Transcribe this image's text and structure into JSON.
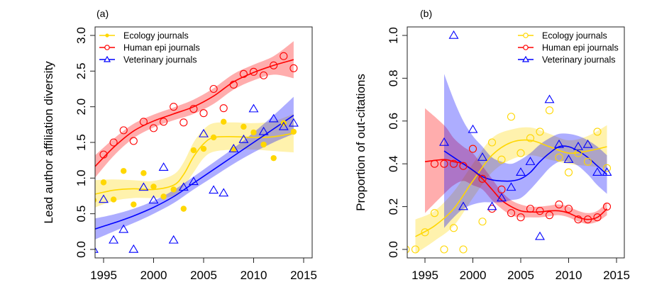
{
  "chart_data": [
    {
      "panel_label": "(a)",
      "type": "scatter",
      "title": "",
      "xlabel": "",
      "ylabel": "Lead author affiliation diversity",
      "xlim": [
        1994,
        2016
      ],
      "ylim": [
        -0.05,
        3.1
      ],
      "xticks": [
        1995,
        2000,
        2005,
        2010,
        2015
      ],
      "xtick_labels": [
        "1995",
        "2000",
        "2005",
        "2010",
        "2015"
      ],
      "yticks": [
        0.0,
        0.5,
        1.0,
        1.5,
        2.0,
        2.5,
        3.0
      ],
      "ytick_labels": [
        "0.0",
        "0.5",
        "1.0",
        "1.5",
        "2.0",
        "2.5",
        "3.0"
      ],
      "grid": false,
      "legend_position": "top-left",
      "series": [
        {
          "name": "Ecology journals",
          "color": "#FFD700",
          "band_color": "#FFF0A0",
          "marker": "filled-circle",
          "x": [
            1994,
            1995,
            1996,
            1997,
            1998,
            1999,
            2000,
            2001,
            2002,
            2003,
            2004,
            2005,
            2006,
            2007,
            2008,
            2009,
            2010,
            2011,
            2012,
            2013,
            2014
          ],
          "y": [
            0.69,
            0.94,
            0.7,
            1.1,
            0.63,
            1.07,
            0.88,
            0.74,
            0.84,
            0.57,
            1.39,
            1.41,
            1.57,
            1.79,
            1.4,
            1.72,
            1.64,
            1.47,
            1.28,
            1.77,
            1.65
          ],
          "fit_x": [
            1994,
            1996,
            1998,
            2000,
            2002,
            2003,
            2004,
            2005,
            2006,
            2008,
            2010,
            2012,
            2014
          ],
          "fit_y": [
            0.77,
            0.83,
            0.85,
            0.84,
            0.9,
            1.05,
            1.3,
            1.48,
            1.57,
            1.58,
            1.57,
            1.58,
            1.63
          ],
          "band_lo": [
            0.58,
            0.68,
            0.72,
            0.72,
            0.75,
            0.88,
            1.08,
            1.28,
            1.37,
            1.4,
            1.4,
            1.38,
            1.36
          ],
          "band_hi": [
            0.97,
            0.98,
            0.97,
            0.96,
            1.05,
            1.22,
            1.5,
            1.68,
            1.77,
            1.78,
            1.77,
            1.8,
            1.9
          ]
        },
        {
          "name": "Human epi journals",
          "color": "#FF0000",
          "band_color": "#F8A8A8",
          "marker": "open-circle",
          "x": [
            1995,
            1996,
            1997,
            1998,
            1999,
            2000,
            2001,
            2002,
            2003,
            2004,
            2005,
            2006,
            2007,
            2008,
            2009,
            2010,
            2011,
            2012,
            2013,
            2014
          ],
          "y": [
            1.33,
            1.5,
            1.67,
            1.52,
            1.79,
            1.7,
            1.79,
            2.0,
            1.78,
            1.97,
            1.91,
            2.25,
            1.98,
            2.31,
            2.46,
            2.49,
            2.44,
            2.58,
            2.71,
            2.54
          ],
          "fit_x": [
            1994,
            1996,
            1998,
            2000,
            2002,
            2004,
            2006,
            2008,
            2010,
            2012,
            2014
          ],
          "fit_y": [
            1.14,
            1.43,
            1.66,
            1.8,
            1.9,
            2.0,
            2.15,
            2.35,
            2.48,
            2.58,
            2.66
          ],
          "band_lo": [
            0.98,
            1.31,
            1.56,
            1.71,
            1.81,
            1.9,
            2.04,
            2.24,
            2.37,
            2.45,
            2.4
          ],
          "band_hi": [
            1.3,
            1.55,
            1.76,
            1.89,
            1.99,
            2.1,
            2.26,
            2.46,
            2.59,
            2.71,
            2.92
          ]
        },
        {
          "name": "Veterinary journals",
          "color": "#0000FF",
          "band_color": "#A8A8F8",
          "marker": "open-triangle",
          "x": [
            1994,
            1995,
            1996,
            1997,
            1998,
            1999,
            2000,
            2001,
            2002,
            2003,
            2004,
            2005,
            2006,
            2007,
            2008,
            2009,
            2010,
            2011,
            2012,
            2013,
            2014
          ],
          "y": [
            0.0,
            0.7,
            0.13,
            0.28,
            0.0,
            0.87,
            0.69,
            1.15,
            0.13,
            0.87,
            0.95,
            1.62,
            0.83,
            0.79,
            1.41,
            1.54,
            1.97,
            1.65,
            1.83,
            1.72,
            1.77
          ],
          "fit_x": [
            1994,
            1996,
            1998,
            2000,
            2002,
            2004,
            2006,
            2008,
            2010,
            2012,
            2014
          ],
          "fit_y": [
            0.28,
            0.37,
            0.47,
            0.59,
            0.74,
            0.93,
            1.12,
            1.31,
            1.5,
            1.69,
            1.88
          ],
          "band_lo": [
            0.13,
            0.25,
            0.37,
            0.5,
            0.65,
            0.84,
            1.02,
            1.2,
            1.36,
            1.5,
            1.62
          ],
          "band_hi": [
            0.43,
            0.49,
            0.57,
            0.68,
            0.83,
            1.02,
            1.22,
            1.42,
            1.64,
            1.88,
            2.14
          ]
        }
      ]
    },
    {
      "panel_label": "(b)",
      "type": "scatter",
      "title": "",
      "xlabel": "",
      "ylabel": "Proportion of out-citations",
      "xlim": [
        1993,
        2016
      ],
      "ylim": [
        -0.04,
        1.04
      ],
      "xticks": [
        1995,
        2000,
        2005,
        2010,
        2015
      ],
      "xtick_labels": [
        "1995",
        "2000",
        "2005",
        "2010",
        "2015"
      ],
      "yticks": [
        0.0,
        0.2,
        0.4,
        0.6,
        0.8,
        1.0
      ],
      "ytick_labels": [
        "0.0",
        "0.2",
        "0.4",
        "0.6",
        "0.8",
        "1.0"
      ],
      "grid": false,
      "legend_position": "top-right",
      "series": [
        {
          "name": "Ecology journals",
          "color": "#FFD700",
          "band_color": "#FFF0A0",
          "marker": "open-circle",
          "x": [
            1993,
            1994,
            1995,
            1996,
            1997,
            1998,
            1999,
            2000,
            2001,
            2002,
            2003,
            2004,
            2005,
            2006,
            2007,
            2008,
            2009,
            2010,
            2011,
            2012,
            2013,
            2014
          ],
          "y": [
            0.0,
            0.0,
            0.08,
            0.17,
            0.0,
            0.1,
            0.0,
            0.47,
            0.13,
            0.5,
            0.42,
            0.62,
            0.45,
            0.52,
            0.55,
            0.65,
            0.43,
            0.36,
            0.45,
            0.41,
            0.55,
            0.38
          ],
          "fit_x": [
            1994,
            1996,
            1998,
            2000,
            2002,
            2004,
            2006,
            2008,
            2010,
            2012,
            2014
          ],
          "fit_y": [
            0.06,
            0.11,
            0.19,
            0.32,
            0.44,
            0.5,
            0.51,
            0.48,
            0.45,
            0.46,
            0.48
          ],
          "band_lo": [
            -0.02,
            0.04,
            0.11,
            0.24,
            0.36,
            0.42,
            0.44,
            0.42,
            0.4,
            0.39,
            0.38
          ],
          "band_hi": [
            0.14,
            0.18,
            0.27,
            0.4,
            0.52,
            0.56,
            0.57,
            0.54,
            0.51,
            0.53,
            0.58
          ]
        },
        {
          "name": "Human epi journals",
          "color": "#FF0000",
          "band_color": "#F8A8A8",
          "marker": "open-circle",
          "x": [
            1996,
            1997,
            1998,
            1999,
            2000,
            2001,
            2002,
            2003,
            2004,
            2005,
            2006,
            2007,
            2008,
            2009,
            2010,
            2011,
            2012,
            2013,
            2014
          ],
          "y": [
            0.4,
            0.4,
            0.4,
            0.39,
            0.47,
            0.33,
            0.19,
            0.28,
            0.17,
            0.15,
            0.19,
            0.18,
            0.16,
            0.21,
            0.19,
            0.14,
            0.14,
            0.15,
            0.2
          ],
          "fit_x": [
            1995,
            1997,
            1998,
            1999,
            2000,
            2001,
            2002,
            2003,
            2004,
            2005,
            2006,
            2007,
            2008,
            2009,
            2010,
            2011,
            2012,
            2013,
            2014
          ],
          "fit_y": [
            0.41,
            0.42,
            0.41,
            0.4,
            0.37,
            0.33,
            0.28,
            0.23,
            0.2,
            0.18,
            0.175,
            0.175,
            0.18,
            0.18,
            0.17,
            0.15,
            0.14,
            0.15,
            0.19
          ],
          "band_lo": [
            0.17,
            0.26,
            0.3,
            0.32,
            0.3,
            0.28,
            0.23,
            0.19,
            0.16,
            0.15,
            0.15,
            0.15,
            0.155,
            0.16,
            0.15,
            0.13,
            0.12,
            0.13,
            0.16
          ],
          "band_hi": [
            0.66,
            0.58,
            0.52,
            0.48,
            0.45,
            0.39,
            0.33,
            0.27,
            0.23,
            0.21,
            0.2,
            0.2,
            0.205,
            0.21,
            0.2,
            0.18,
            0.17,
            0.18,
            0.22
          ]
        },
        {
          "name": "Veterinary journals",
          "color": "#0000FF",
          "band_color": "#A8A8F8",
          "marker": "open-triangle",
          "x": [
            1997,
            1998,
            1999,
            2000,
            2001,
            2002,
            2003,
            2004,
            2005,
            2006,
            2007,
            2008,
            2009,
            2010,
            2011,
            2012,
            2013,
            2014
          ],
          "y": [
            0.5,
            1.0,
            0.2,
            0.56,
            0.43,
            0.2,
            0.24,
            0.29,
            0.36,
            0.41,
            0.06,
            0.7,
            0.49,
            0.42,
            0.48,
            0.49,
            0.36,
            0.36
          ],
          "fit_x": [
            1997,
            1998,
            1999,
            2000,
            2001,
            2002,
            2003,
            2004,
            2005,
            2006,
            2007,
            2008,
            2009,
            2010,
            2011,
            2012,
            2013,
            2014
          ],
          "fit_y": [
            0.46,
            0.43,
            0.4,
            0.37,
            0.34,
            0.325,
            0.32,
            0.32,
            0.33,
            0.36,
            0.41,
            0.45,
            0.48,
            0.48,
            0.46,
            0.43,
            0.39,
            0.35
          ],
          "band_lo": [
            0.1,
            0.15,
            0.19,
            0.21,
            0.22,
            0.22,
            0.22,
            0.23,
            0.24,
            0.28,
            0.33,
            0.38,
            0.41,
            0.41,
            0.39,
            0.35,
            0.3,
            0.26
          ],
          "band_hi": [
            0.82,
            0.7,
            0.6,
            0.53,
            0.48,
            0.43,
            0.41,
            0.4,
            0.42,
            0.45,
            0.49,
            0.52,
            0.54,
            0.54,
            0.53,
            0.51,
            0.48,
            0.44
          ]
        }
      ]
    }
  ]
}
